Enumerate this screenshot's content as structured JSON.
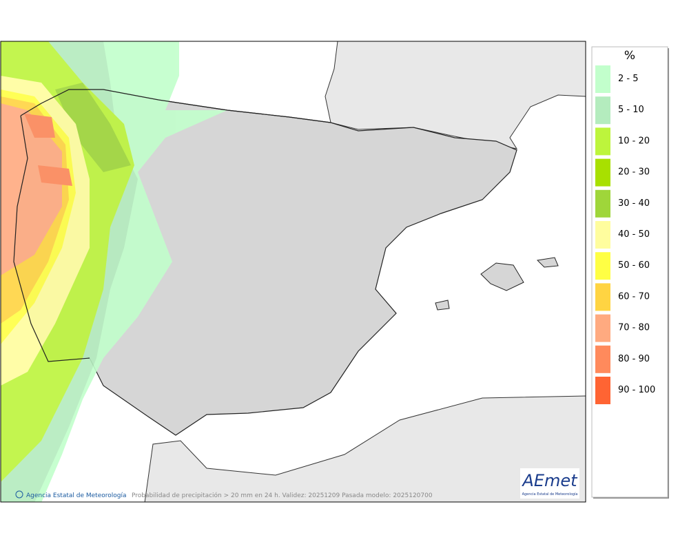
{
  "legend": {
    "title": "%",
    "items": [
      {
        "label": "2 - 5",
        "color": "#c2ffcc"
      },
      {
        "label": "5 - 10",
        "color": "#b4ecbe"
      },
      {
        "label": "10 - 20",
        "color": "#bdf53c"
      },
      {
        "label": "20 - 30",
        "color": "#a8e000"
      },
      {
        "label": "30 - 40",
        "color": "#9fd63a"
      },
      {
        "label": "40 - 50",
        "color": "#fffd9e"
      },
      {
        "label": "50 - 60",
        "color": "#ffff44"
      },
      {
        "label": "60 - 70",
        "color": "#ffd442"
      },
      {
        "label": "70 - 80",
        "color": "#ffaa80"
      },
      {
        "label": "80 - 90",
        "color": "#ff8a5c"
      },
      {
        "label": "90 - 100",
        "color": "#ff6433"
      }
    ]
  },
  "footer": {
    "credit": "Agencia Estatal de Meteorología",
    "caption": "Probabilidad de precipitación > 20 mm en 24 h. Validez: 20251209 Pasada modelo: 2025120700"
  },
  "logo": {
    "name": "AEmet",
    "subtitle": "Agencia Estatal de Meteorología"
  }
}
